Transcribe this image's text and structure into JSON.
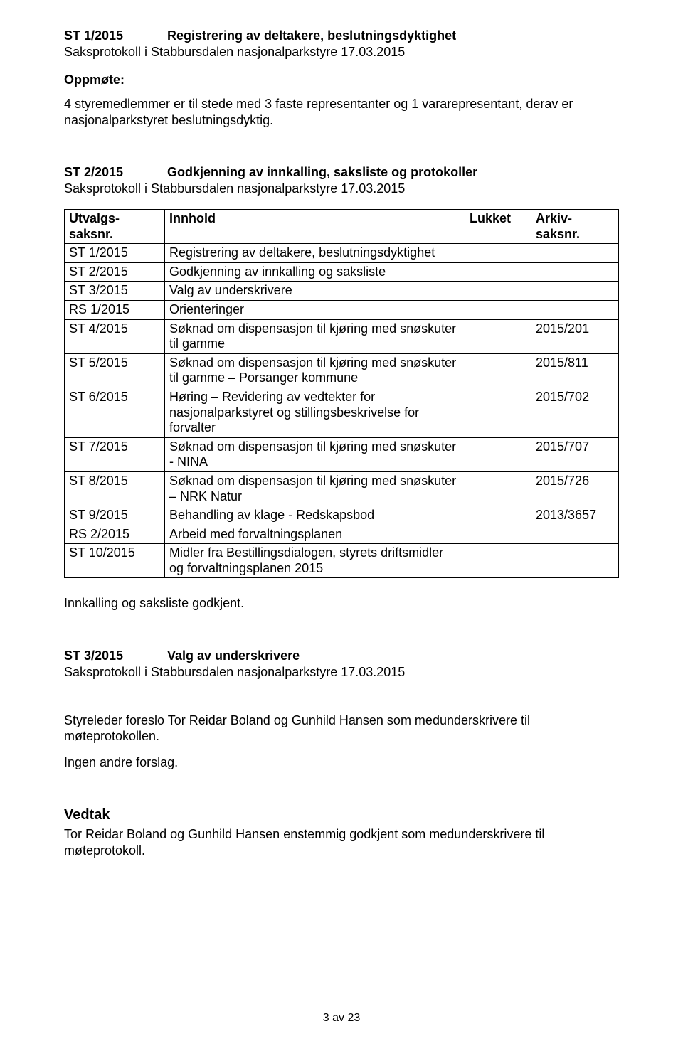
{
  "section1": {
    "id": "ST 1/2015",
    "title": "Registrering av deltakere, beslutningsdyktighet",
    "protocol_line": "Saksprotokoll i Stabbursdalen nasjonalparkstyre 17.03.2015",
    "oppmote_label": "Oppmøte:",
    "oppmote_text": "4 styremedlemmer er til stede med 3 faste representanter og 1 vararepresentant, derav er nasjonalparkstyret beslutningsdyktig."
  },
  "section2": {
    "id": "ST 2/2015",
    "title": "Godkjenning av innkalling, saksliste og protokoller",
    "protocol_line": "Saksprotokoll i Stabbursdalen nasjonalparkstyre 17.03.2015"
  },
  "table": {
    "headers": {
      "col1": "Utvalgs-saksnr.",
      "col2": "Innhold",
      "col3": "Lukket",
      "col4": "Arkiv-saksnr."
    },
    "rows": [
      {
        "id": "ST 1/2015",
        "content": "Registrering av deltakere, beslutningsdyktighet",
        "lukket": "",
        "arkiv": ""
      },
      {
        "id": "ST 2/2015",
        "content": "Godkjenning av innkalling og saksliste",
        "lukket": "",
        "arkiv": ""
      },
      {
        "id": "ST 3/2015",
        "content": "Valg av underskrivere",
        "lukket": "",
        "arkiv": ""
      },
      {
        "id": "RS 1/2015",
        "content": "Orienteringer",
        "lukket": "",
        "arkiv": ""
      },
      {
        "id": "ST 4/2015",
        "content": "Søknad om dispensasjon til kjøring med snøskuter til gamme",
        "lukket": "",
        "arkiv": "2015/201"
      },
      {
        "id": "ST 5/2015",
        "content": "Søknad om dispensasjon til kjøring med snøskuter til gamme – Porsanger kommune",
        "lukket": "",
        "arkiv": "2015/811"
      },
      {
        "id": "ST 6/2015",
        "content": "Høring – Revidering av vedtekter for nasjonalparkstyret og stillingsbeskrivelse for forvalter",
        "lukket": "",
        "arkiv": "2015/702"
      },
      {
        "id": "ST 7/2015",
        "content": "Søknad om dispensasjon til kjøring med snøskuter - NINA",
        "lukket": "",
        "arkiv": "2015/707"
      },
      {
        "id": "ST 8/2015",
        "content": "Søknad om dispensasjon til kjøring med snøskuter – NRK Natur",
        "lukket": "",
        "arkiv": "2015/726"
      },
      {
        "id": "ST 9/2015",
        "content": "Behandling av klage - Redskapsbod",
        "lukket": "",
        "arkiv": "2013/3657"
      },
      {
        "id": "RS 2/2015",
        "content": "Arbeid med forvaltningsplanen",
        "lukket": "",
        "arkiv": ""
      },
      {
        "id": "ST 10/2015",
        "content": "Midler fra Bestillingsdialogen, styrets driftsmidler og forvaltningsplanen 2015",
        "lukket": "",
        "arkiv": ""
      }
    ]
  },
  "approval_line": "Innkalling og saksliste godkjent.",
  "section3": {
    "id": "ST 3/2015",
    "title": "Valg av underskrivere",
    "protocol_line": "Saksprotokoll i Stabbursdalen nasjonalparkstyre 17.03.2015",
    "body1": "Styreleder foreslo Tor Reidar Boland og Gunhild Hansen som medunderskrivere til møteprotokollen.",
    "body2": "Ingen andre forslag."
  },
  "vedtak": {
    "label": "Vedtak",
    "text": "Tor Reidar Boland og Gunhild Hansen enstemmig godkjent som medunderskrivere til møteprotokoll."
  },
  "footer": "3 av 23"
}
